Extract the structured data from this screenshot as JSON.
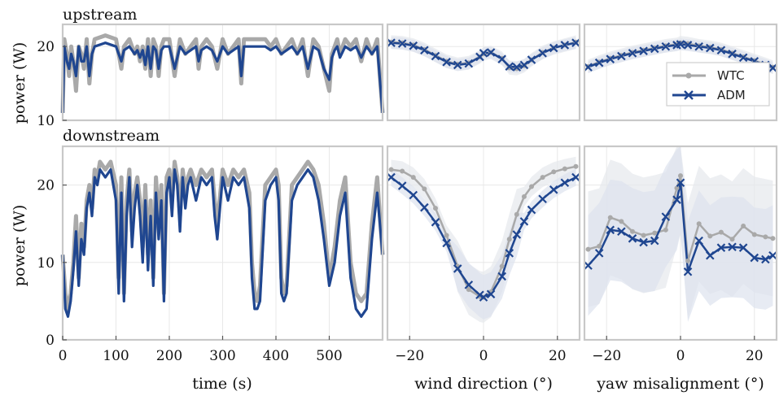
{
  "colors": {
    "wtc": "#a9a9a9",
    "adm": "#1f4690",
    "band_wtc": "#e6e8ec",
    "band_adm": "#dde2ee",
    "frame": "#c8c8c8",
    "grid": "#e8e8e8"
  },
  "labels": {
    "row_top": "upstream",
    "row_bottom": "downstream",
    "ylabel": "power (W)",
    "xlabel_time": "time (s)",
    "xlabel_wind": "wind direction (°)",
    "xlabel_yaw": "yaw misalignment (°)"
  },
  "legend": {
    "wtc": "WTC",
    "adm": "ADM",
    "placement": "upper-right of upstream yaw panel"
  },
  "chart_data": [
    {
      "id": "upstream_time",
      "type": "line",
      "xlabel": "time (s)",
      "ylabel": "power (W)",
      "xlim": [
        0,
        600
      ],
      "ylim": [
        10,
        23
      ],
      "yticks": [
        10,
        20
      ],
      "xticks": [
        0,
        100,
        200,
        300,
        400,
        500
      ],
      "series": [
        {
          "name": "WTC",
          "x": [
            0,
            3,
            8,
            12,
            16,
            20,
            25,
            30,
            35,
            40,
            45,
            50,
            55,
            60,
            80,
            100,
            110,
            115,
            125,
            135,
            140,
            145,
            150,
            155,
            160,
            165,
            170,
            175,
            180,
            185,
            190,
            200,
            210,
            220,
            230,
            240,
            250,
            255,
            260,
            270,
            280,
            290,
            300,
            310,
            320,
            330,
            335,
            340,
            350,
            360,
            380,
            390,
            400,
            410,
            420,
            430,
            440,
            450,
            460,
            470,
            480,
            490,
            500,
            505,
            510,
            515,
            520,
            530,
            540,
            550,
            560,
            570,
            580,
            590,
            600
          ],
          "values": [
            11,
            21,
            19,
            16,
            20,
            18,
            14,
            20,
            19,
            17,
            21,
            15,
            19,
            21,
            21.5,
            21,
            17,
            20,
            21,
            19,
            20,
            18,
            20,
            17,
            21,
            16,
            21,
            20,
            16,
            20,
            21,
            21,
            16,
            21,
            19,
            20,
            21,
            17,
            20,
            21,
            20,
            17,
            21,
            19,
            20,
            21,
            15,
            21,
            21,
            21,
            21,
            20,
            21,
            19,
            20,
            21,
            19,
            21,
            16,
            21,
            20,
            17,
            14,
            19,
            20,
            21,
            19,
            21,
            20,
            21,
            18,
            21,
            19,
            21,
            11
          ]
        },
        {
          "name": "ADM",
          "x": [
            0,
            3,
            8,
            12,
            16,
            20,
            25,
            30,
            35,
            40,
            45,
            50,
            55,
            60,
            80,
            100,
            110,
            115,
            125,
            135,
            140,
            145,
            150,
            155,
            160,
            165,
            170,
            175,
            180,
            185,
            190,
            200,
            210,
            220,
            230,
            240,
            250,
            255,
            260,
            270,
            280,
            290,
            300,
            310,
            320,
            330,
            335,
            340,
            350,
            360,
            380,
            390,
            400,
            410,
            420,
            430,
            440,
            450,
            460,
            470,
            480,
            490,
            500,
            505,
            510,
            515,
            520,
            530,
            540,
            550,
            560,
            570,
            580,
            590,
            600
          ],
          "values": [
            11,
            20,
            18,
            17,
            19,
            18,
            16,
            20,
            18,
            18,
            20,
            16,
            19,
            20,
            20.5,
            20,
            18,
            19.5,
            20,
            19,
            19.5,
            18.5,
            19.5,
            17.5,
            20,
            17,
            20,
            19.5,
            17,
            19.5,
            20,
            20,
            17,
            20,
            19,
            19.5,
            20,
            18,
            19.5,
            20,
            19.5,
            18,
            20,
            19,
            19.5,
            20,
            16,
            20,
            20,
            20,
            20,
            19.5,
            20,
            19,
            19.5,
            20,
            19,
            20,
            17,
            20,
            19.5,
            17,
            15.5,
            18.5,
            19.5,
            20,
            18.5,
            20,
            19.5,
            20,
            18.5,
            20,
            19,
            20,
            11
          ]
        }
      ]
    },
    {
      "id": "upstream_wind",
      "type": "line",
      "xlabel": "wind direction (°)",
      "xlim": [
        -26,
        26
      ],
      "ylim": [
        10,
        23
      ],
      "xticks": [
        -20,
        0,
        20
      ],
      "series": [
        {
          "name": "WTC",
          "x": [
            -25,
            -22,
            -19,
            -16,
            -13,
            -10,
            -7,
            -4,
            -1,
            0,
            2,
            5,
            7,
            9,
            11,
            13,
            16,
            19,
            22,
            25
          ],
          "values": [
            20.6,
            20.5,
            20.2,
            19.6,
            18.8,
            18.0,
            17.6,
            17.8,
            18.6,
            19.0,
            19.2,
            18.4,
            17.1,
            17.0,
            17.4,
            18.2,
            19.2,
            19.8,
            20.2,
            20.6
          ]
        },
        {
          "name": "ADM",
          "x": [
            -25,
            -22,
            -19,
            -16,
            -13,
            -10,
            -7,
            -4,
            -1,
            0,
            2,
            5,
            7,
            9,
            11,
            13,
            16,
            19,
            22,
            25
          ],
          "values": [
            20.5,
            20.4,
            20.1,
            19.5,
            18.7,
            17.9,
            17.5,
            17.7,
            18.6,
            19.1,
            19.2,
            18.3,
            17.3,
            17.2,
            17.5,
            18.2,
            19.1,
            19.8,
            20.2,
            20.5
          ]
        }
      ]
    },
    {
      "id": "upstream_yaw",
      "type": "line",
      "xlabel": "yaw misalignment (°)",
      "xlim": [
        -26,
        26
      ],
      "ylim": [
        10,
        23
      ],
      "xticks": [
        -20,
        0,
        20
      ],
      "series": [
        {
          "name": "WTC",
          "x": [
            -25,
            -22,
            -19,
            -16,
            -13,
            -10,
            -7,
            -4,
            -1,
            0,
            2,
            5,
            8,
            11,
            14,
            17,
            20,
            23,
            25
          ],
          "values": [
            17.3,
            17.9,
            18.4,
            18.8,
            19.2,
            19.5,
            19.8,
            20.1,
            20.3,
            20.5,
            20.4,
            20.1,
            19.9,
            19.6,
            19.1,
            18.6,
            18.1,
            17.6,
            17.2
          ]
        },
        {
          "name": "ADM",
          "x": [
            -25,
            -22,
            -19,
            -16,
            -13,
            -10,
            -7,
            -4,
            -1,
            0,
            2,
            5,
            8,
            11,
            14,
            17,
            20,
            23,
            25
          ],
          "values": [
            17.2,
            17.8,
            18.3,
            18.7,
            19.1,
            19.4,
            19.7,
            20.0,
            20.2,
            20.3,
            20.2,
            20.0,
            19.8,
            19.5,
            19.0,
            18.5,
            18.0,
            17.5,
            17.1
          ]
        }
      ]
    },
    {
      "id": "downstream_time",
      "type": "line",
      "xlabel": "time (s)",
      "ylabel": "power (W)",
      "xlim": [
        0,
        600
      ],
      "ylim": [
        0,
        25
      ],
      "yticks": [
        0,
        10,
        20
      ],
      "xticks": [
        0,
        100,
        200,
        300,
        400,
        500
      ],
      "series": [
        {
          "name": "WTC",
          "x": [
            0,
            5,
            10,
            15,
            20,
            25,
            30,
            35,
            40,
            45,
            50,
            55,
            60,
            65,
            70,
            80,
            90,
            100,
            105,
            110,
            115,
            120,
            125,
            130,
            135,
            140,
            145,
            150,
            155,
            160,
            165,
            170,
            175,
            180,
            185,
            190,
            195,
            200,
            205,
            210,
            215,
            220,
            225,
            230,
            235,
            240,
            250,
            260,
            270,
            280,
            285,
            290,
            300,
            310,
            320,
            330,
            340,
            350,
            355,
            360,
            365,
            370,
            380,
            390,
            400,
            405,
            410,
            415,
            420,
            430,
            440,
            450,
            460,
            470,
            480,
            490,
            500,
            510,
            520,
            530,
            540,
            550,
            560,
            570,
            580,
            590,
            600
          ],
          "values": [
            11,
            6,
            4,
            6,
            10,
            16,
            8,
            15,
            12,
            18,
            20,
            17,
            22,
            21,
            23,
            22,
            23,
            20,
            8,
            21,
            6,
            18,
            22,
            14,
            19,
            21,
            18,
            12,
            20,
            11,
            18,
            8,
            21,
            15,
            20,
            6,
            21,
            22,
            18,
            23,
            21,
            16,
            22,
            19,
            21,
            22,
            20,
            22,
            21,
            22,
            18,
            15,
            22,
            20,
            22,
            21,
            22,
            19,
            10,
            6,
            5,
            7,
            20,
            21,
            22,
            20,
            8,
            6,
            7,
            20,
            21,
            22,
            23,
            22,
            20,
            15,
            8,
            12,
            18,
            21,
            10,
            6,
            5,
            6,
            15,
            21,
            11
          ]
        },
        {
          "name": "ADM",
          "x": [
            0,
            5,
            10,
            15,
            20,
            25,
            30,
            35,
            40,
            45,
            50,
            55,
            60,
            65,
            70,
            80,
            90,
            100,
            105,
            110,
            115,
            120,
            125,
            130,
            135,
            140,
            145,
            150,
            155,
            160,
            165,
            170,
            175,
            180,
            185,
            190,
            195,
            200,
            205,
            210,
            215,
            220,
            225,
            230,
            235,
            240,
            250,
            260,
            270,
            280,
            285,
            290,
            300,
            310,
            320,
            330,
            340,
            350,
            355,
            360,
            365,
            370,
            380,
            390,
            400,
            405,
            410,
            415,
            420,
            430,
            440,
            450,
            460,
            470,
            480,
            490,
            500,
            510,
            520,
            530,
            540,
            550,
            560,
            570,
            580,
            590,
            600
          ],
          "values": [
            11,
            4,
            3,
            5,
            9,
            14,
            7,
            13,
            11,
            17,
            19,
            16,
            21,
            20,
            22,
            21,
            22,
            18,
            6,
            19,
            5,
            16,
            21,
            12,
            17,
            20,
            16,
            10,
            18,
            9,
            16,
            7,
            19,
            13,
            18,
            5,
            19,
            21,
            16,
            22,
            20,
            14,
            21,
            17,
            20,
            21,
            18,
            21,
            20,
            21,
            16,
            13,
            21,
            18,
            21,
            20,
            21,
            17,
            8,
            4,
            4,
            5,
            18,
            20,
            21,
            18,
            6,
            5,
            6,
            18,
            20,
            21,
            22,
            21,
            18,
            13,
            7,
            10,
            16,
            19,
            8,
            4,
            3,
            4,
            13,
            19,
            11
          ]
        }
      ]
    },
    {
      "id": "downstream_wind",
      "type": "line",
      "xlabel": "wind direction (°)",
      "xlim": [
        -26,
        26
      ],
      "ylim": [
        0,
        25
      ],
      "xticks": [
        -20,
        0,
        20
      ],
      "series": [
        {
          "name": "WTC",
          "x": [
            -25,
            -22,
            -19,
            -16,
            -13,
            -10,
            -7,
            -4,
            -1,
            0,
            2,
            5,
            7,
            9,
            11,
            13,
            16,
            19,
            22,
            25
          ],
          "values": [
            22.0,
            21.8,
            21.0,
            19.5,
            17.0,
            13.5,
            9.5,
            6.5,
            5.6,
            5.5,
            6.2,
            9.5,
            13.0,
            16.2,
            18.5,
            19.8,
            21.0,
            21.7,
            22.1,
            22.4
          ]
        },
        {
          "name": "ADM",
          "x": [
            -25,
            -22,
            -19,
            -16,
            -13,
            -10,
            -7,
            -4,
            -1,
            0,
            2,
            5,
            7,
            9,
            11,
            13,
            16,
            19,
            22,
            25
          ],
          "values": [
            21.0,
            19.9,
            18.7,
            17.1,
            15.2,
            12.5,
            9.2,
            7.1,
            5.8,
            5.5,
            5.9,
            8.2,
            11.2,
            13.6,
            15.3,
            16.8,
            18.2,
            19.4,
            20.3,
            21.0
          ]
        }
      ]
    },
    {
      "id": "downstream_yaw",
      "type": "line",
      "xlabel": "yaw misalignment (°)",
      "xlim": [
        -26,
        26
      ],
      "ylim": [
        0,
        25
      ],
      "xticks": [
        -20,
        0,
        20
      ],
      "series": [
        {
          "name": "WTC",
          "x": [
            -25,
            -22,
            -19,
            -16,
            -13,
            -10,
            -7,
            -4,
            -1,
            0,
            2,
            5,
            8,
            11,
            14,
            17,
            20,
            23,
            25
          ],
          "values": [
            11.7,
            12.1,
            15.8,
            15.3,
            14.0,
            13.5,
            13.8,
            14.2,
            19.6,
            21.2,
            10.2,
            15.0,
            13.4,
            13.9,
            13.0,
            14.7,
            13.6,
            13.3,
            13.1
          ]
        },
        {
          "name": "ADM",
          "x": [
            -25,
            -22,
            -19,
            -16,
            -13,
            -10,
            -7,
            -4,
            -1,
            0,
            2,
            5,
            8,
            11,
            14,
            17,
            20,
            23,
            25
          ],
          "values": [
            9.6,
            11.2,
            14.2,
            14.0,
            13.1,
            12.6,
            12.8,
            15.9,
            18.1,
            20.3,
            8.8,
            12.8,
            10.9,
            11.9,
            12.0,
            11.9,
            10.6,
            10.4,
            10.9
          ]
        }
      ]
    }
  ]
}
